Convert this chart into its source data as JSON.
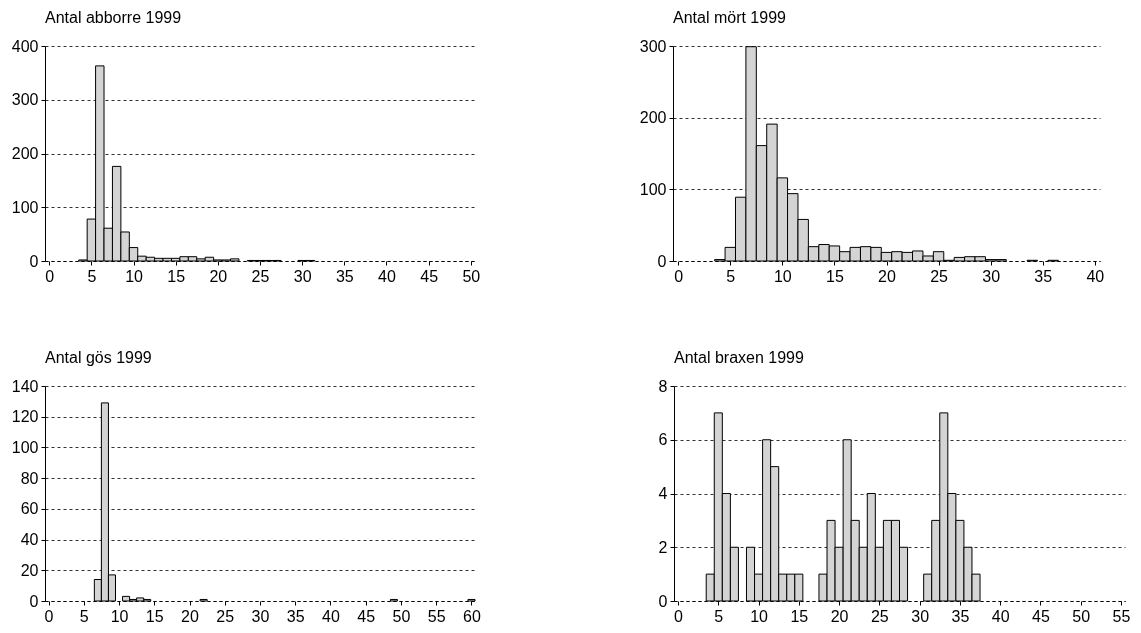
{
  "chart_data": [
    {
      "type": "histogram",
      "title": "Antal abborre 1999",
      "color": "#d4d4d4",
      "grid": "y",
      "bins": [
        3.5,
        4.5,
        5.5,
        6.5,
        7.5,
        8.5,
        9.5,
        10.5,
        11.5,
        12.5,
        13.5,
        14.5,
        15.5,
        16.5,
        17.5,
        18.5,
        19.5,
        20.5,
        21.5,
        22.5,
        23.5,
        24.5,
        25.5,
        26.5,
        27.5,
        28.5,
        29.5,
        30.5,
        31.5
      ],
      "values": [
        2,
        78,
        363,
        61,
        176,
        54,
        25,
        9,
        7,
        5,
        5,
        5,
        8,
        8,
        4,
        7,
        2,
        2,
        4,
        0,
        1,
        1,
        1,
        1,
        0,
        0,
        1,
        1
      ],
      "xlim": [
        -0.5,
        50.5
      ],
      "xticks": [
        0,
        5,
        10,
        15,
        20,
        25,
        30,
        35,
        40,
        45,
        50
      ],
      "ylim": [
        0,
        400
      ],
      "yticks": [
        0,
        100,
        200,
        300,
        400
      ]
    },
    {
      "type": "histogram",
      "title": "Antal mört 1999",
      "color": "#d4d4d4",
      "grid": "y",
      "bins": [
        3.5,
        4.5,
        5.5,
        6.5,
        7.5,
        8.5,
        9.5,
        10.5,
        11.5,
        12.5,
        13.5,
        14.5,
        15.5,
        16.5,
        17.5,
        18.5,
        19.5,
        20.5,
        21.5,
        22.5,
        23.5,
        24.5,
        25.5,
        26.5,
        27.5,
        28.5,
        29.5,
        30.5,
        31.5,
        32.5,
        33.5,
        34.5,
        35.5,
        36.5
      ],
      "values": [
        2,
        19,
        89,
        299,
        161,
        191,
        116,
        94,
        58,
        20,
        23,
        21,
        13,
        19,
        20,
        19,
        12,
        13,
        12,
        14,
        7,
        13,
        1,
        5,
        6,
        6,
        2,
        2,
        0,
        0,
        1,
        0,
        1
      ],
      "xlim": [
        -0.5,
        40.5
      ],
      "xticks": [
        0,
        5,
        10,
        15,
        20,
        25,
        30,
        35,
        40
      ],
      "ylim": [
        0,
        300
      ],
      "yticks": [
        0,
        100,
        200,
        300
      ]
    },
    {
      "type": "histogram",
      "title": "Antal gös 1999",
      "color": "#d4d4d4",
      "grid": "y",
      "bins": [
        6.5,
        7.5,
        8.5,
        9.5,
        10.5,
        11.5,
        12.5,
        13.5,
        14.5,
        15.5,
        16.5,
        17.5,
        18.5,
        19.5,
        20.5,
        21.5,
        22.5,
        23.5,
        24.5,
        25.5,
        26.5,
        27.5,
        28.5,
        29.5,
        30.5,
        31.5,
        32.5,
        33.5,
        34.5,
        35.5,
        36.5,
        37.5,
        38.5,
        39.5,
        40.5,
        41.5,
        42.5,
        43.5,
        44.5,
        45.5,
        46.5,
        47.5,
        48.5,
        49.5,
        50.5,
        51.5,
        52.5,
        53.5,
        54.5,
        55.5,
        56.5,
        57.5,
        58.5,
        59.5,
        60.5
      ],
      "values": [
        14,
        129,
        17,
        0,
        3,
        1,
        2,
        1,
        0,
        0,
        0,
        0,
        0,
        0,
        0,
        1,
        0,
        0,
        0,
        0,
        0,
        0,
        0,
        0,
        0,
        0,
        0,
        0,
        0,
        0,
        0,
        0,
        0,
        0,
        0,
        0,
        0,
        0,
        0,
        0,
        0,
        0,
        1,
        0,
        0,
        0,
        0,
        0,
        0,
        0,
        0,
        0,
        0,
        1
      ],
      "xlim": [
        -0.5,
        60.5
      ],
      "xticks": [
        0,
        5,
        10,
        15,
        20,
        25,
        30,
        35,
        40,
        45,
        50,
        55,
        60
      ],
      "ylim": [
        0,
        140
      ],
      "yticks": [
        0,
        20,
        40,
        60,
        80,
        100,
        120,
        140
      ]
    },
    {
      "type": "histogram",
      "title": "Antal braxen 1999",
      "color": "#d4d4d4",
      "grid": "y",
      "bins": [
        3.5,
        4.5,
        5.5,
        6.5,
        7.5,
        8.5,
        9.5,
        10.5,
        11.5,
        12.5,
        13.5,
        14.5,
        15.5,
        16.5,
        17.5,
        18.5,
        19.5,
        20.5,
        21.5,
        22.5,
        23.5,
        24.5,
        25.5,
        26.5,
        27.5,
        28.5,
        29.5,
        30.5,
        31.5,
        32.5,
        33.5,
        34.5,
        35.5,
        36.5,
        37.5
      ],
      "values": [
        1,
        7,
        4,
        2,
        0,
        2,
        1,
        6,
        5,
        1,
        1,
        1,
        0,
        0,
        1,
        3,
        2,
        6,
        3,
        2,
        4,
        2,
        3,
        3,
        2,
        0,
        0,
        1,
        3,
        7,
        4,
        3,
        2,
        1
      ],
      "xlim": [
        -0.5,
        55.5
      ],
      "xticks": [
        0,
        5,
        10,
        15,
        20,
        25,
        30,
        35,
        40,
        45,
        50,
        55
      ],
      "ylim": [
        0,
        8
      ],
      "yticks": [
        0,
        2,
        4,
        6,
        8
      ]
    }
  ]
}
